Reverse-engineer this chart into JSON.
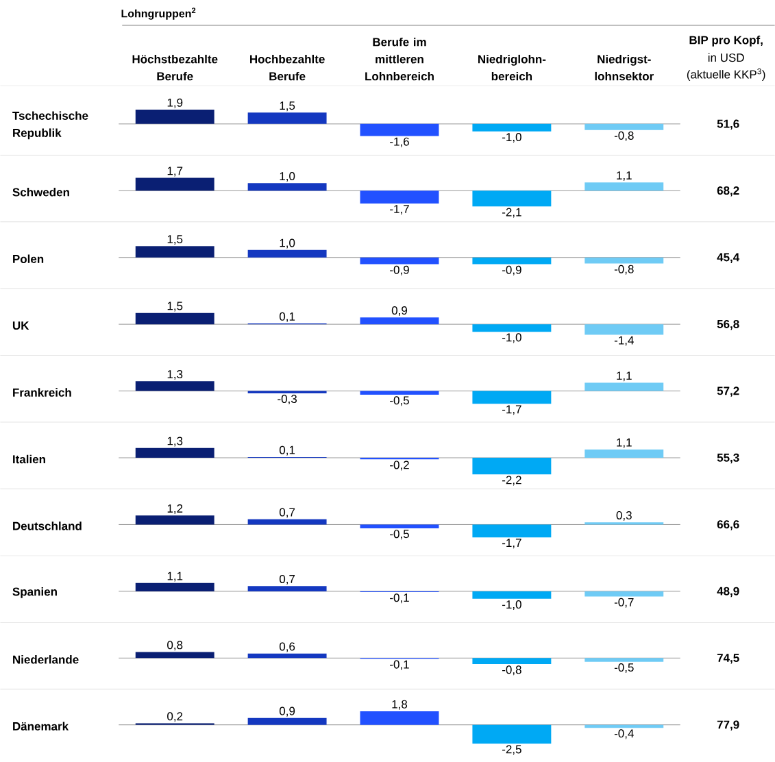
{
  "chart_data": [
    {
      "type": "bar",
      "ylabel": "Tschechische Republik",
      "subtitle": "Lohngruppen$^{2}$",
      "categories": [
        "Höchstbezahlte Berufe",
        "Hochbezahlte Berufe",
        "Berufe im mittleren Lohnbereich",
        "Niedriglohn-bereich",
        "Niedrigst-lohnsektor"
      ],
      "values": [
        1.9,
        1.5,
        -1.6,
        -1.0,
        -0.8
      ],
      "value_labels": [
        "1,9",
        "1,5",
        "-1,6",
        "-1,0",
        "-0,8"
      ],
      "colors": [
        "#0a1f73",
        "#1438c0",
        "#2251ff",
        "#00a9f4",
        "#6fcbf5"
      ],
      "annotations": [
        "51,6",
        "BIP pro Kopf,",
        "in USD",
        "(aktuelle KKP$^{3}$)"
      ]
    },
    {
      "type": "bar",
      "ylabel": "Schweden",
      "categories": [
        null,
        null,
        null,
        null,
        null
      ],
      "values": [
        1.7,
        1.0,
        -1.7,
        -2.1,
        1.1
      ],
      "value_labels": [
        "1,7",
        "1,0",
        "-1,7",
        "-2,1",
        "1,1"
      ],
      "colors": [
        "#0a1f73",
        "#1438c0",
        "#2251ff",
        "#00a9f4",
        "#6fcbf5"
      ],
      "annotations": [
        "68,2"
      ]
    },
    {
      "type": "bar",
      "ylabel": "Polen",
      "categories": [
        null,
        null,
        null,
        null,
        null
      ],
      "values": [
        1.5,
        1.0,
        -0.9,
        -0.9,
        -0.8
      ],
      "value_labels": [
        "1,5",
        "1,0",
        "-0,9",
        "-0,9",
        "-0,8"
      ],
      "colors": [
        "#0a1f73",
        "#1438c0",
        "#2251ff",
        "#00a9f4",
        "#6fcbf5"
      ],
      "annotations": [
        "45,4"
      ]
    },
    {
      "type": "bar",
      "ylabel": "UK",
      "categories": [
        null,
        null,
        null,
        null,
        null
      ],
      "values": [
        1.5,
        0.1,
        0.9,
        -1.0,
        -1.4
      ],
      "value_labels": [
        "1,5",
        "0,1",
        "0,9",
        "-1,0",
        "-1,4"
      ],
      "colors": [
        "#0a1f73",
        "#1438c0",
        "#2251ff",
        "#00a9f4",
        "#6fcbf5"
      ],
      "annotations": [
        "56,8"
      ]
    },
    {
      "type": "bar",
      "ylabel": "Frankreich",
      "categories": [
        null,
        null,
        null,
        null,
        null
      ],
      "values": [
        1.3,
        -0.3,
        -0.5,
        -1.7,
        1.1
      ],
      "value_labels": [
        "1,3",
        "-0,3",
        "-0,5",
        "-1,7",
        "1,1"
      ],
      "colors": [
        "#0a1f73",
        "#1438c0",
        "#2251ff",
        "#00a9f4",
        "#6fcbf5"
      ],
      "annotations": [
        "57,2"
      ]
    },
    {
      "type": "bar",
      "ylabel": "Italien",
      "categories": [
        null,
        null,
        null,
        null,
        null
      ],
      "values": [
        1.3,
        0.1,
        -0.2,
        -2.2,
        1.1
      ],
      "value_labels": [
        "1,3",
        "0,1",
        "-0,2",
        "-2,2",
        "1,1"
      ],
      "colors": [
        "#0a1f73",
        "#1438c0",
        "#2251ff",
        "#00a9f4",
        "#6fcbf5"
      ],
      "annotations": [
        "55,3"
      ]
    },
    {
      "type": "bar",
      "ylabel": "Deutschland",
      "categories": [
        null,
        null,
        null,
        null,
        null
      ],
      "values": [
        1.2,
        0.7,
        -0.5,
        -1.7,
        0.3
      ],
      "value_labels": [
        "1,2",
        "0,7",
        "-0,5",
        "-1,7",
        "0,3"
      ],
      "colors": [
        "#0a1f73",
        "#1438c0",
        "#2251ff",
        "#00a9f4",
        "#6fcbf5"
      ],
      "annotations": [
        "66,6"
      ]
    },
    {
      "type": "bar",
      "ylabel": "Spanien",
      "categories": [
        null,
        null,
        null,
        null,
        null
      ],
      "values": [
        1.1,
        0.7,
        -0.1,
        -1.0,
        -0.7
      ],
      "value_labels": [
        "1,1",
        "0,7",
        "-0,1",
        "-1,0",
        "-0,7"
      ],
      "colors": [
        "#0a1f73",
        "#1438c0",
        "#2251ff",
        "#00a9f4",
        "#6fcbf5"
      ],
      "annotations": [
        "48,9"
      ]
    },
    {
      "type": "bar",
      "ylabel": "Niederlande",
      "categories": [
        null,
        null,
        null,
        null,
        null
      ],
      "values": [
        0.8,
        0.6,
        -0.1,
        -0.8,
        -0.5
      ],
      "value_labels": [
        "0,8",
        "0,6",
        "-0,1",
        "-0,8",
        "-0,5"
      ],
      "colors": [
        "#0a1f73",
        "#1438c0",
        "#2251ff",
        "#00a9f4",
        "#6fcbf5"
      ],
      "annotations": [
        "74,5"
      ]
    },
    {
      "type": "bar",
      "ylabel": "Dänemark",
      "categories": [
        null,
        null,
        null,
        null,
        null
      ],
      "values": [
        0.2,
        0.9,
        1.8,
        -2.5,
        -0.4
      ],
      "value_labels": [
        "0,2",
        "0,9",
        "1,8",
        "-2,5",
        "-0,4"
      ],
      "colors": [
        "#0a1f73",
        "#1438c0",
        "#2251ff",
        "#00a9f4",
        "#6fcbf5"
      ],
      "annotations": [
        "77,9"
      ]
    }
  ]
}
